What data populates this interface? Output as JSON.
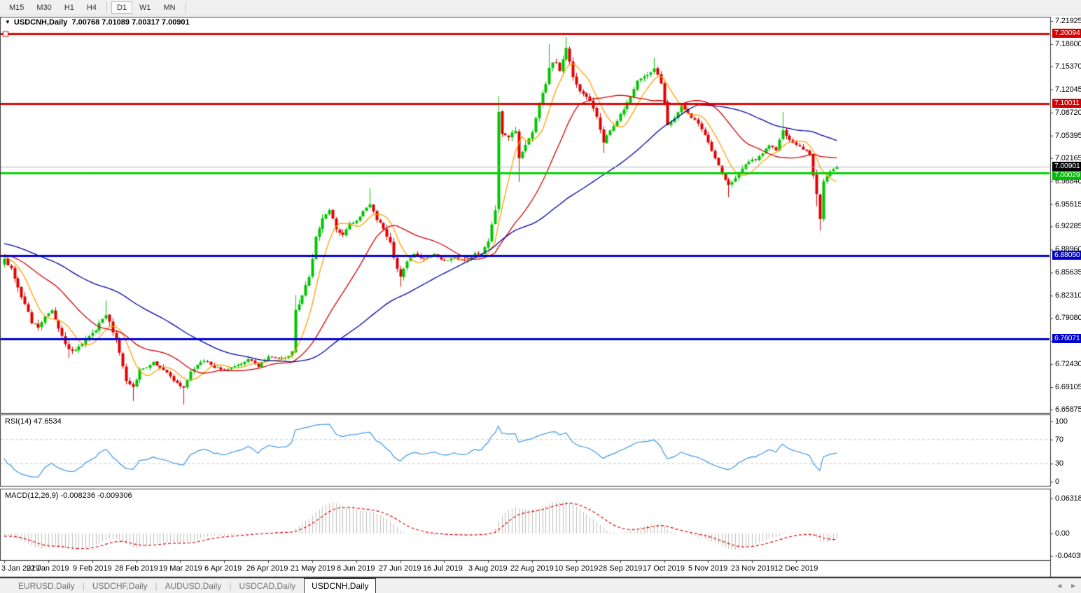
{
  "toolbar": {
    "items": [
      "M15",
      "M30",
      "H1",
      "H4",
      "D1",
      "W1",
      "MN"
    ],
    "active": "D1",
    "dividers_after": [
      "H4",
      "MN"
    ]
  },
  "icons": {
    "dropdown": "▼",
    "tab_scroll_left": "◄",
    "tab_scroll_right": "►"
  },
  "chart": {
    "title": {
      "symbol": "USDCNH,Daily",
      "ohlc": "7.00768 7.01089 7.00317 7.00901"
    }
  },
  "chart_data": {
    "type": "candlestick",
    "symbol": "USDCNH",
    "timeframe": "Daily",
    "ohlc_display": {
      "open": "7.00768",
      "high": "7.01089",
      "low": "7.00317",
      "close": "7.00901"
    },
    "price_axis": {
      "ticks": [
        "7.21925",
        "7.18600",
        "7.15370",
        "7.12045",
        "7.08720",
        "7.05395",
        "7.02165",
        "6.98840",
        "6.95515",
        "6.92285",
        "6.88960",
        "6.85635",
        "6.82310",
        "6.79080",
        "6.75755",
        "6.72430",
        "6.69105",
        "6.65875"
      ],
      "max": 7.21925,
      "min": 6.65875
    },
    "x_axis": {
      "tick_labels": [
        "3 Jan 2019",
        "22 Jan 2019",
        "9 Feb 2019",
        "28 Feb 2019",
        "19 Mar 2019",
        "6 Apr 2019",
        "26 Apr 2019",
        "21 May 2019",
        "8 Jun 2019",
        "27 Jun 2019",
        "16 Jul 2019",
        "3 Aug 2019",
        "22 Aug 2019",
        "10 Sep 2019",
        "28 Sep 2019",
        "17 Oct 2019",
        "5 Nov 2019",
        "23 Nov 2019",
        "12 Dec 2019"
      ],
      "bars_per_tick": 13
    },
    "levels": [
      {
        "price": 7.20094,
        "label": "7.20094",
        "line_color": "#e00000",
        "badge_color": "#d40000",
        "width": 3,
        "handle": true,
        "type": "resistance"
      },
      {
        "price": 7.10011,
        "label": "7.10011",
        "line_color": "#e00000",
        "badge_color": "#d40000",
        "width": 3,
        "handle": false,
        "type": "resistance"
      },
      {
        "price": 7.00901,
        "label": "7.00901",
        "line_color": "#b4b4b4",
        "badge_color": "#000000",
        "width": 1,
        "handle": false,
        "type": "current-price"
      },
      {
        "price": 7.00029,
        "label": "7.00029",
        "line_color": "#00d200",
        "badge_color": "#00bb00",
        "width": 3,
        "handle": false,
        "type": "support"
      },
      {
        "price": 6.8805,
        "label": "6.88050",
        "line_color": "#0000d2",
        "badge_color": "#0000cc",
        "width": 3,
        "handle": false,
        "type": "support"
      },
      {
        "price": 6.76071,
        "label": "6.76071",
        "line_color": "#0000d2",
        "badge_color": "#0000cc",
        "width": 3,
        "handle": false,
        "type": "support"
      }
    ],
    "candle_colors": {
      "up": "#00c400",
      "down": "#e00000"
    },
    "bars_total": 247,
    "series_anchors": [
      [
        0,
        6.876,
        0.007
      ],
      [
        2,
        6.862,
        0.008
      ],
      [
        4,
        6.836,
        0.009
      ],
      [
        6,
        6.81,
        0.009
      ],
      [
        8,
        6.784,
        0.008
      ],
      [
        10,
        6.778,
        0.008
      ],
      [
        12,
        6.794,
        0.007
      ],
      [
        14,
        6.8,
        0.007
      ],
      [
        16,
        6.776,
        0.008
      ],
      [
        18,
        6.752,
        0.008
      ],
      [
        20,
        6.742,
        0.007
      ],
      [
        22,
        6.748,
        0.007
      ],
      [
        24,
        6.76,
        0.007
      ],
      [
        26,
        6.768,
        0.007
      ],
      [
        28,
        6.782,
        0.008
      ],
      [
        30,
        6.795,
        0.008
      ],
      [
        32,
        6.772,
        0.008
      ],
      [
        34,
        6.742,
        0.008
      ],
      [
        36,
        6.702,
        0.008
      ],
      [
        38,
        6.69,
        0.008
      ],
      [
        40,
        6.716,
        0.007
      ],
      [
        44,
        6.726,
        0.006
      ],
      [
        48,
        6.712,
        0.006
      ],
      [
        51,
        6.696,
        0.006
      ],
      [
        53,
        6.69,
        0.006
      ],
      [
        55,
        6.712,
        0.006
      ],
      [
        57,
        6.724,
        0.006
      ],
      [
        59,
        6.73,
        0.005
      ],
      [
        62,
        6.72,
        0.005
      ],
      [
        65,
        6.716,
        0.005
      ],
      [
        69,
        6.722,
        0.005
      ],
      [
        72,
        6.732,
        0.005
      ],
      [
        75,
        6.722,
        0.005
      ],
      [
        78,
        6.736,
        0.005
      ],
      [
        81,
        6.732,
        0.005
      ],
      [
        83,
        6.734,
        0.005
      ],
      [
        85,
        6.741,
        0.006
      ],
      [
        86,
        6.8,
        0.014
      ],
      [
        88,
        6.826,
        0.01
      ],
      [
        90,
        6.852,
        0.01
      ],
      [
        92,
        6.906,
        0.01
      ],
      [
        94,
        6.934,
        0.008
      ],
      [
        96,
        6.946,
        0.007
      ],
      [
        98,
        6.92,
        0.007
      ],
      [
        100,
        6.91,
        0.007
      ],
      [
        102,
        6.926,
        0.006
      ],
      [
        104,
        6.93,
        0.006
      ],
      [
        106,
        6.946,
        0.007
      ],
      [
        108,
        6.956,
        0.007
      ],
      [
        110,
        6.934,
        0.007
      ],
      [
        112,
        6.92,
        0.008
      ],
      [
        114,
        6.898,
        0.008
      ],
      [
        116,
        6.862,
        0.008
      ],
      [
        117,
        6.85,
        0.008
      ],
      [
        119,
        6.872,
        0.006
      ],
      [
        121,
        6.884,
        0.006
      ],
      [
        124,
        6.876,
        0.005
      ],
      [
        127,
        6.882,
        0.005
      ],
      [
        130,
        6.874,
        0.005
      ],
      [
        133,
        6.878,
        0.005
      ],
      [
        136,
        6.874,
        0.005
      ],
      [
        139,
        6.883,
        0.005
      ],
      [
        141,
        6.885,
        0.005
      ],
      [
        143,
        6.902,
        0.007
      ],
      [
        145,
        6.946,
        0.011
      ],
      [
        146,
        7.086,
        0.015
      ],
      [
        147,
        7.058,
        0.01
      ],
      [
        149,
        7.05,
        0.008
      ],
      [
        151,
        7.062,
        0.008
      ],
      [
        152,
        7.022,
        0.009
      ],
      [
        154,
        7.04,
        0.007
      ],
      [
        156,
        7.06,
        0.007
      ],
      [
        157,
        7.078,
        0.007
      ],
      [
        158,
        7.098,
        0.008
      ],
      [
        160,
        7.128,
        0.008
      ],
      [
        161,
        7.154,
        0.009
      ],
      [
        163,
        7.16,
        0.007
      ],
      [
        164,
        7.146,
        0.007
      ],
      [
        166,
        7.178,
        0.008
      ],
      [
        168,
        7.14,
        0.008
      ],
      [
        170,
        7.117,
        0.007
      ],
      [
        172,
        7.11,
        0.007
      ],
      [
        174,
        7.094,
        0.007
      ],
      [
        176,
        7.064,
        0.008
      ],
      [
        177,
        7.044,
        0.008
      ],
      [
        179,
        7.062,
        0.006
      ],
      [
        181,
        7.076,
        0.006
      ],
      [
        183,
        7.092,
        0.006
      ],
      [
        185,
        7.11,
        0.006
      ],
      [
        187,
        7.134,
        0.006
      ],
      [
        190,
        7.14,
        0.006
      ],
      [
        192,
        7.152,
        0.006
      ],
      [
        194,
        7.128,
        0.007
      ],
      [
        196,
        7.07,
        0.009
      ],
      [
        198,
        7.078,
        0.006
      ],
      [
        200,
        7.098,
        0.006
      ],
      [
        202,
        7.086,
        0.006
      ],
      [
        204,
        7.076,
        0.006
      ],
      [
        206,
        7.064,
        0.006
      ],
      [
        208,
        7.044,
        0.006
      ],
      [
        210,
        7.02,
        0.007
      ],
      [
        212,
        7.002,
        0.007
      ],
      [
        214,
        6.982,
        0.007
      ],
      [
        216,
        6.992,
        0.006
      ],
      [
        218,
        7.008,
        0.006
      ],
      [
        220,
        7.016,
        0.005
      ],
      [
        222,
        7.02,
        0.005
      ],
      [
        224,
        7.028,
        0.005
      ],
      [
        226,
        7.04,
        0.005
      ],
      [
        228,
        7.034,
        0.005
      ],
      [
        230,
        7.062,
        0.007
      ],
      [
        232,
        7.048,
        0.006
      ],
      [
        234,
        7.04,
        0.005
      ],
      [
        236,
        7.034,
        0.005
      ],
      [
        238,
        7.028,
        0.005
      ],
      [
        240,
        6.97,
        0.012
      ],
      [
        241,
        6.936,
        0.01
      ],
      [
        242,
        6.988,
        0.008
      ],
      [
        244,
        7.002,
        0.005
      ],
      [
        246,
        7.009,
        0.004
      ]
    ],
    "prehistory_anchors": [
      [
        -75,
        6.93
      ],
      [
        -62,
        6.952
      ],
      [
        -50,
        6.902
      ],
      [
        -40,
        6.93
      ],
      [
        -30,
        6.88
      ],
      [
        -22,
        6.896
      ],
      [
        -14,
        6.872
      ],
      [
        -8,
        6.884
      ],
      [
        -1,
        6.874
      ]
    ],
    "spikes": [
      [
        19,
        "lo",
        6.733
      ],
      [
        30,
        "hi",
        6.816
      ],
      [
        38,
        "lo",
        6.671
      ],
      [
        53,
        "lo",
        6.666
      ],
      [
        86,
        "hi",
        6.824
      ],
      [
        96,
        "hi",
        6.949
      ],
      [
        108,
        "hi",
        6.978
      ],
      [
        117,
        "lo",
        6.836
      ],
      [
        146,
        "hi",
        7.111
      ],
      [
        152,
        "lo",
        6.987
      ],
      [
        161,
        "hi",
        7.186
      ],
      [
        166,
        "hi",
        7.1965
      ],
      [
        177,
        "lo",
        7.029
      ],
      [
        192,
        "hi",
        7.166
      ],
      [
        214,
        "lo",
        6.965
      ],
      [
        230,
        "hi",
        7.088
      ],
      [
        240,
        "lo",
        6.952
      ],
      [
        241,
        "lo",
        6.917
      ]
    ],
    "moving_averages": [
      {
        "period": 8,
        "color": "#ffa000",
        "name": "MA-fast"
      },
      {
        "period": 25,
        "color": "#d20000",
        "name": "MA-mid"
      },
      {
        "period": 60,
        "color": "#0000a8",
        "name": "MA-slow"
      }
    ],
    "rsi": {
      "label": "RSI(14) 47.6534",
      "period": 14,
      "last_value": 47.6534,
      "axis_ticks": [
        "100",
        "70",
        "30",
        "0"
      ],
      "guide_levels": [
        70,
        30
      ],
      "line_color": "#3c96e6",
      "guide_color": "#c8c8c8"
    },
    "macd": {
      "label": "MACD(12,26,9) -0.008236 -0.009306",
      "fast": 12,
      "slow": 26,
      "signal": 9,
      "last_macd": -0.008236,
      "last_signal": -0.009306,
      "axis_ticks": [
        "0.063184",
        "0.00",
        "-0.040355"
      ],
      "axis_tick_values": [
        0.063184,
        0,
        -0.040355
      ],
      "histogram_color": "#bebebe",
      "signal_color": "#e00000"
    }
  },
  "tabs": {
    "items": [
      "EURUSD,Daily",
      "USDCHF,Daily",
      "AUDUSD,Daily",
      "USDCAD,Daily",
      "USDCNH,Daily"
    ],
    "active": "USDCNH,Daily"
  }
}
